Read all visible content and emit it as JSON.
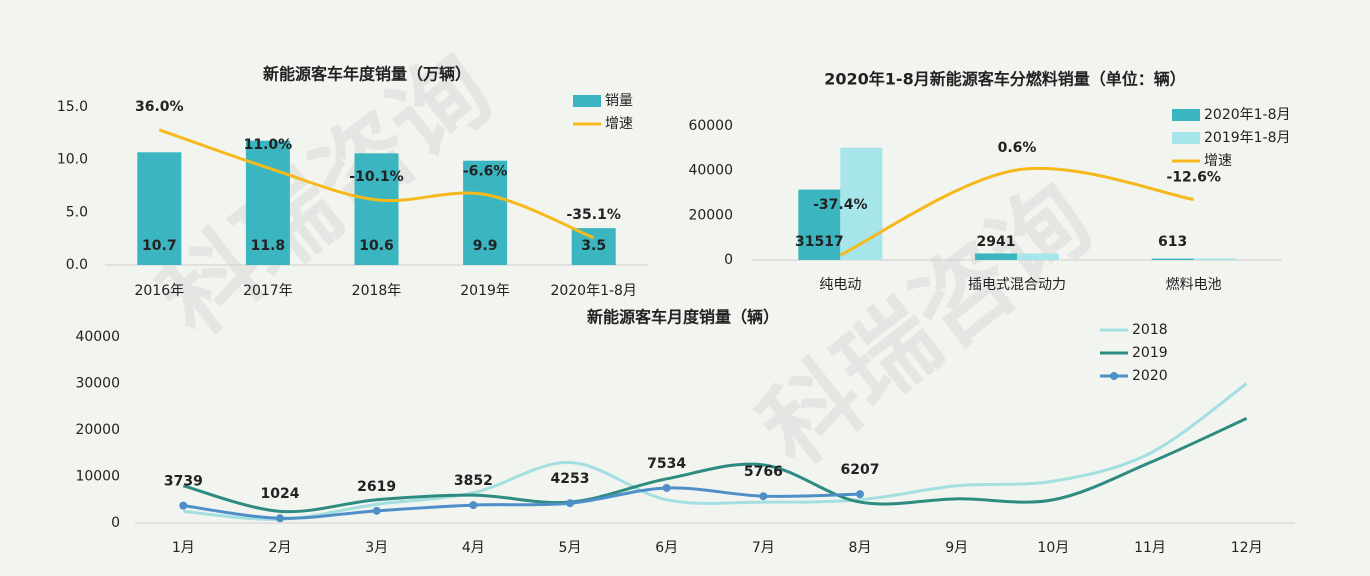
{
  "watermark": "科瑞咨询",
  "chart_data": [
    {
      "type": "bar",
      "title": "新能源客车年度销量（万辆）",
      "categories": [
        "2016年",
        "2017年",
        "2018年",
        "2019年",
        "2020年1-8月"
      ],
      "series": [
        {
          "name": "销量",
          "type": "bar",
          "color": "#3bb5bf",
          "labels": true,
          "values": [
            10.7,
            11.8,
            10.6,
            9.9,
            3.5
          ]
        },
        {
          "name": "增速",
          "type": "line",
          "axis": "y2",
          "color": "#f6b91b",
          "labels": true,
          "values": [
            36.0,
            11.0,
            -10.1,
            -6.6,
            -35.1
          ],
          "value_labels": [
            "36.0%",
            "11.0%",
            "-10.1%",
            "-6.6%",
            "-35.1%"
          ]
        }
      ],
      "ylim": [
        0,
        15
      ],
      "yticks": [
        {
          "value": 0,
          "label": "0.0"
        },
        {
          "value": 5,
          "label": "5.0"
        },
        {
          "value": 10,
          "label": "10.0"
        },
        {
          "value": 15,
          "label": "15.0"
        }
      ],
      "y2lim": [
        -53,
        51
      ],
      "legend": "upper right"
    },
    {
      "type": "bar",
      "title": "2020年1-8月新能源客车分燃料销量（单位：辆）",
      "categories": [
        "纯电动",
        "插电式混合动力",
        "燃料电池"
      ],
      "series": [
        {
          "name": "2020年1-8月",
          "type": "bar",
          "color": "#3bb5bf",
          "labels": true,
          "values": [
            31517,
            2941,
            613
          ]
        },
        {
          "name": "2019年1-8月",
          "type": "bar",
          "color": "#a6e5ea",
          "values": [
            50300,
            2900,
            700
          ]
        },
        {
          "name": "增速",
          "type": "line",
          "axis": "y2",
          "color": "#f6b91b",
          "labels": true,
          "values": [
            -37.4,
            0.6,
            -12.6
          ],
          "value_labels": [
            "-37.4%",
            "0.6%",
            "-12.6%"
          ]
        }
      ],
      "ylim": [
        0,
        60000
      ],
      "yticks": [
        0,
        20000,
        40000,
        60000
      ],
      "y2lim": [
        -39.6,
        20.2
      ],
      "legend": "upper right"
    },
    {
      "type": "line",
      "title": "新能源客车月度销量（辆）",
      "categories": [
        "1月",
        "2月",
        "3月",
        "4月",
        "5月",
        "6月",
        "7月",
        "8月",
        "9月",
        "10月",
        "11月",
        "12月"
      ],
      "series": [
        {
          "name": "2018",
          "color": "#a4dfe0",
          "values": [
            2500,
            800,
            4000,
            6500,
            13000,
            5000,
            4500,
            5000,
            8000,
            9000,
            15000,
            30000
          ]
        },
        {
          "name": "2019",
          "color": "#2e8b80",
          "values": [
            8000,
            2500,
            5000,
            6000,
            4500,
            9500,
            12500,
            4500,
            5200,
            5000,
            13000,
            22500
          ]
        },
        {
          "name": "2020",
          "color": "#4f8fc8",
          "marker": true,
          "labels": true,
          "values": [
            3739,
            1024,
            2619,
            3852,
            4253,
            7534,
            5766,
            6207,
            null,
            null,
            null,
            null
          ]
        }
      ],
      "ylim": [
        0,
        40000
      ],
      "yticks": [
        0,
        10000,
        20000,
        30000,
        40000
      ],
      "legend": "upper right"
    }
  ]
}
